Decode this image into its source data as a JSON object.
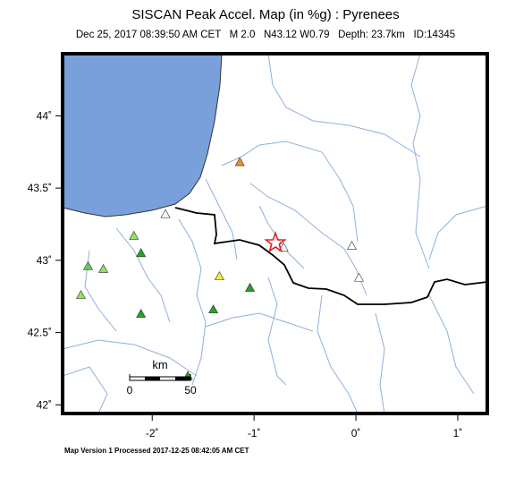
{
  "title": "SISCAN Peak Accel. Map (in %g) : Pyrenees",
  "subtitle": "Dec 25, 2017 08:39:50 AM CET   M 2.0   N43.12 W0.79   Depth: 23.7km   ID:14345",
  "footer": "Map Version 1 Processed 2017-12-25 08:42:05 AM CET",
  "map": {
    "xlim": [
      -2.88,
      1.29
    ],
    "ylim": [
      41.94,
      44.43
    ],
    "xticks": [
      {
        "value": -2,
        "label": "-2˚"
      },
      {
        "value": -1,
        "label": "-1˚"
      },
      {
        "value": 0,
        "label": "0˚"
      },
      {
        "value": 1,
        "label": "1˚"
      }
    ],
    "yticks": [
      {
        "value": 42,
        "label": "42˚"
      },
      {
        "value": 42.5,
        "label": "42.5˚"
      },
      {
        "value": 43,
        "label": "43˚"
      },
      {
        "value": 43.5,
        "label": "43.5˚"
      },
      {
        "value": 44,
        "label": "44˚"
      }
    ],
    "epicenter": {
      "lon": -0.79,
      "lat": 43.12,
      "color": "#e02020"
    },
    "stations": [
      {
        "lon": -1.14,
        "lat": 43.68,
        "color": "#f08c2c"
      },
      {
        "lon": -1.87,
        "lat": 43.32,
        "color": "#ffffff"
      },
      {
        "lon": -2.18,
        "lat": 43.17,
        "color": "#8ee36a"
      },
      {
        "lon": -2.11,
        "lat": 43.05,
        "color": "#2aa02a"
      },
      {
        "lon": -2.48,
        "lat": 42.94,
        "color": "#8ee36a"
      },
      {
        "lon": -2.63,
        "lat": 42.96,
        "color": "#6cc85a"
      },
      {
        "lon": -2.7,
        "lat": 42.76,
        "color": "#8ee36a"
      },
      {
        "lon": -1.34,
        "lat": 42.89,
        "color": "#f5f03a"
      },
      {
        "lon": -1.04,
        "lat": 42.81,
        "color": "#2aa02a"
      },
      {
        "lon": -1.4,
        "lat": 42.66,
        "color": "#2aa02a"
      },
      {
        "lon": -2.11,
        "lat": 42.63,
        "color": "#2aa02a"
      },
      {
        "lon": -1.65,
        "lat": 42.2,
        "color": "#2aa02a"
      },
      {
        "lon": -0.71,
        "lat": 43.09,
        "color": "#ffffff"
      },
      {
        "lon": -0.04,
        "lat": 43.1,
        "color": "#ffffff"
      },
      {
        "lon": 0.03,
        "lat": 42.88,
        "color": "#ffffff"
      }
    ],
    "scale_bar": {
      "unit": "km",
      "ticks": [
        0,
        50
      ]
    }
  }
}
